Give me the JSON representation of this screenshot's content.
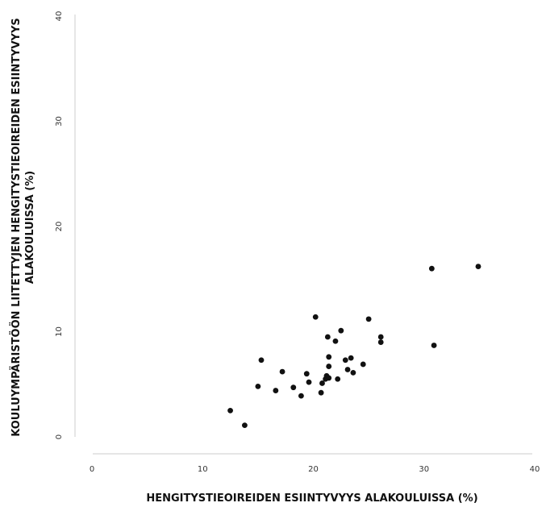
{
  "chart_data": {
    "type": "scatter",
    "xlabel": "HENGITYSTIEOIREIDEN ESIINTYVYYS ALAKOULUISSA (%)",
    "ylabel_lines": [
      "KOULUYMPÄRISTÖÖN LIITETTYJEN HENGITYSTIEOIREIDEN ESIINTYVYYS",
      "ALAKOULUISSA (%)"
    ],
    "xlim": [
      0,
      40
    ],
    "ylim": [
      0,
      40
    ],
    "xticks": [
      "0",
      "10",
      "20",
      "30",
      "40"
    ],
    "yticks": [
      "0",
      "10",
      "20",
      "30",
      "40"
    ],
    "grid": false,
    "points": [
      {
        "x": 12.5,
        "y": 2.5
      },
      {
        "x": 13.8,
        "y": 1.1
      },
      {
        "x": 15.0,
        "y": 4.8
      },
      {
        "x": 15.3,
        "y": 7.3
      },
      {
        "x": 16.6,
        "y": 4.4
      },
      {
        "x": 17.2,
        "y": 6.2
      },
      {
        "x": 18.2,
        "y": 4.7
      },
      {
        "x": 18.9,
        "y": 3.9
      },
      {
        "x": 19.4,
        "y": 6.0
      },
      {
        "x": 19.6,
        "y": 5.2
      },
      {
        "x": 20.2,
        "y": 11.4
      },
      {
        "x": 20.7,
        "y": 4.2
      },
      {
        "x": 20.8,
        "y": 5.1
      },
      {
        "x": 21.1,
        "y": 5.5
      },
      {
        "x": 21.2,
        "y": 5.8
      },
      {
        "x": 21.3,
        "y": 9.5
      },
      {
        "x": 21.4,
        "y": 6.7
      },
      {
        "x": 21.4,
        "y": 7.6
      },
      {
        "x": 21.4,
        "y": 5.6
      },
      {
        "x": 22.0,
        "y": 9.1
      },
      {
        "x": 22.2,
        "y": 5.5
      },
      {
        "x": 22.5,
        "y": 10.1
      },
      {
        "x": 22.9,
        "y": 7.3
      },
      {
        "x": 23.1,
        "y": 6.4
      },
      {
        "x": 23.4,
        "y": 7.5
      },
      {
        "x": 23.6,
        "y": 6.1
      },
      {
        "x": 24.5,
        "y": 6.9
      },
      {
        "x": 25.0,
        "y": 11.2
      },
      {
        "x": 26.1,
        "y": 9.5
      },
      {
        "x": 26.1,
        "y": 9.0
      },
      {
        "x": 30.7,
        "y": 16.0
      },
      {
        "x": 30.9,
        "y": 8.7
      },
      {
        "x": 34.9,
        "y": 16.2
      }
    ]
  }
}
